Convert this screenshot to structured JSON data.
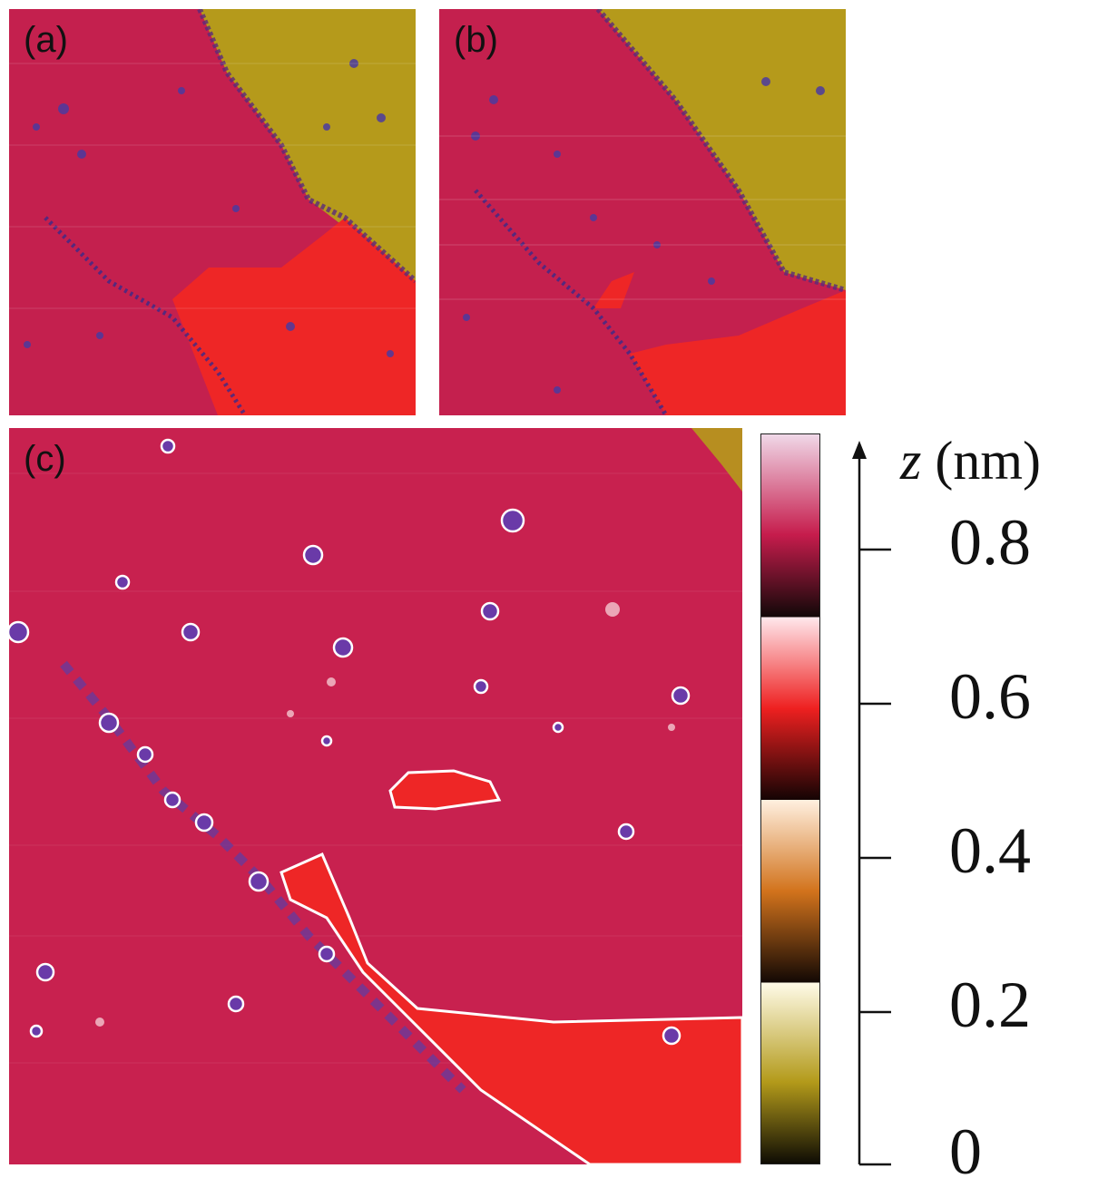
{
  "panels": [
    {
      "id": "a",
      "label": "(a)"
    },
    {
      "id": "b",
      "label": "(b)"
    },
    {
      "id": "c",
      "label": "(c)"
    }
  ],
  "colorbar": {
    "variable": "z",
    "unit": "(nm)",
    "ticks": [
      "0",
      "0.2",
      "0.4",
      "0.6",
      "0.8"
    ],
    "range": [
      0,
      0.95
    ],
    "colors": {
      "olive": "#b39a1a",
      "orange": "#d2731c",
      "red": "#ee2020",
      "magenta": "#c61c4c",
      "pink_top": "#f0d8e8",
      "black": "#110808"
    }
  }
}
